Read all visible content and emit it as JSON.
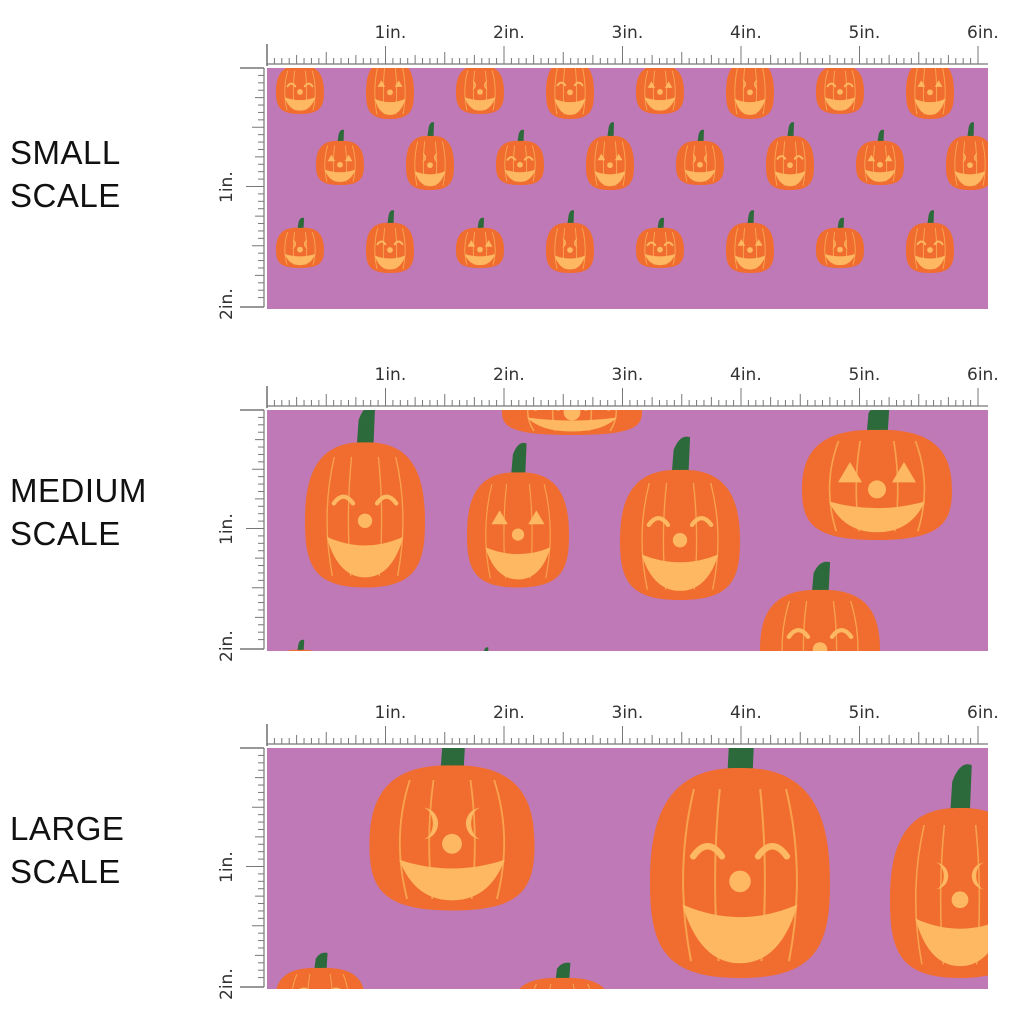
{
  "colors": {
    "background": "#bf79b6",
    "pumpkin": "#f06d2f",
    "pumpkin_line": "#fbb45a",
    "face": "#fdb861",
    "stem": "#2c6a3c",
    "ruler": "#777777"
  },
  "ruler_labels": {
    "horizontal": [
      "1in.",
      "2in.",
      "3in.",
      "4in.",
      "5in.",
      "6in."
    ],
    "vertical": [
      "1in.",
      "2in."
    ]
  },
  "panels": [
    {
      "id": "small",
      "label_line1": "SMALL",
      "label_line2": "SCALE"
    },
    {
      "id": "medium",
      "label_line1": "MEDIUM",
      "label_line2": "SCALE"
    },
    {
      "id": "large",
      "label_line1": "LARGE",
      "label_line2": "SCALE"
    }
  ]
}
